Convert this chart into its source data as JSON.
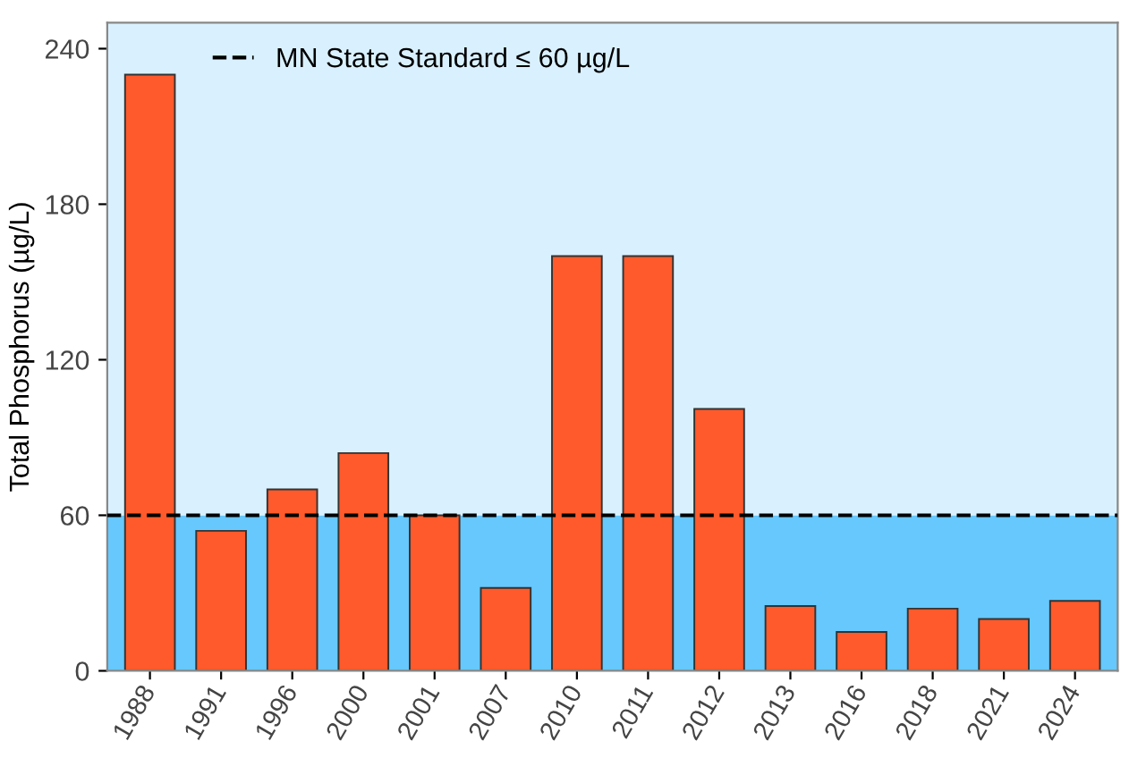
{
  "chart_data": {
    "type": "bar",
    "ylabel": "Total Phosphorus (µg/L)",
    "categories": [
      "1988",
      "1991",
      "1996",
      "2000",
      "2001",
      "2007",
      "2010",
      "2011",
      "2012",
      "2013",
      "2016",
      "2018",
      "2021",
      "2024"
    ],
    "values": [
      230,
      54,
      70,
      84,
      60,
      32,
      160,
      160,
      101,
      25,
      15,
      24,
      20,
      27
    ],
    "color": "#ff5a2b",
    "ylim": [
      0,
      250
    ],
    "yticks": [
      0,
      60,
      120,
      180,
      240
    ],
    "grid": false,
    "legend": "top left",
    "bands": [
      {
        "axis": "y",
        "from": 0,
        "to": 60,
        "color": "#66c8fd"
      },
      {
        "axis": "y",
        "from": 60,
        "to": 250,
        "color": "#d9f1fe"
      }
    ],
    "ref_lines": [
      {
        "axis": "y",
        "value": 60,
        "label": "MN State Standard ≤ 60 µg/L",
        "color": "#000000",
        "line_style": "dashed"
      }
    ]
  }
}
